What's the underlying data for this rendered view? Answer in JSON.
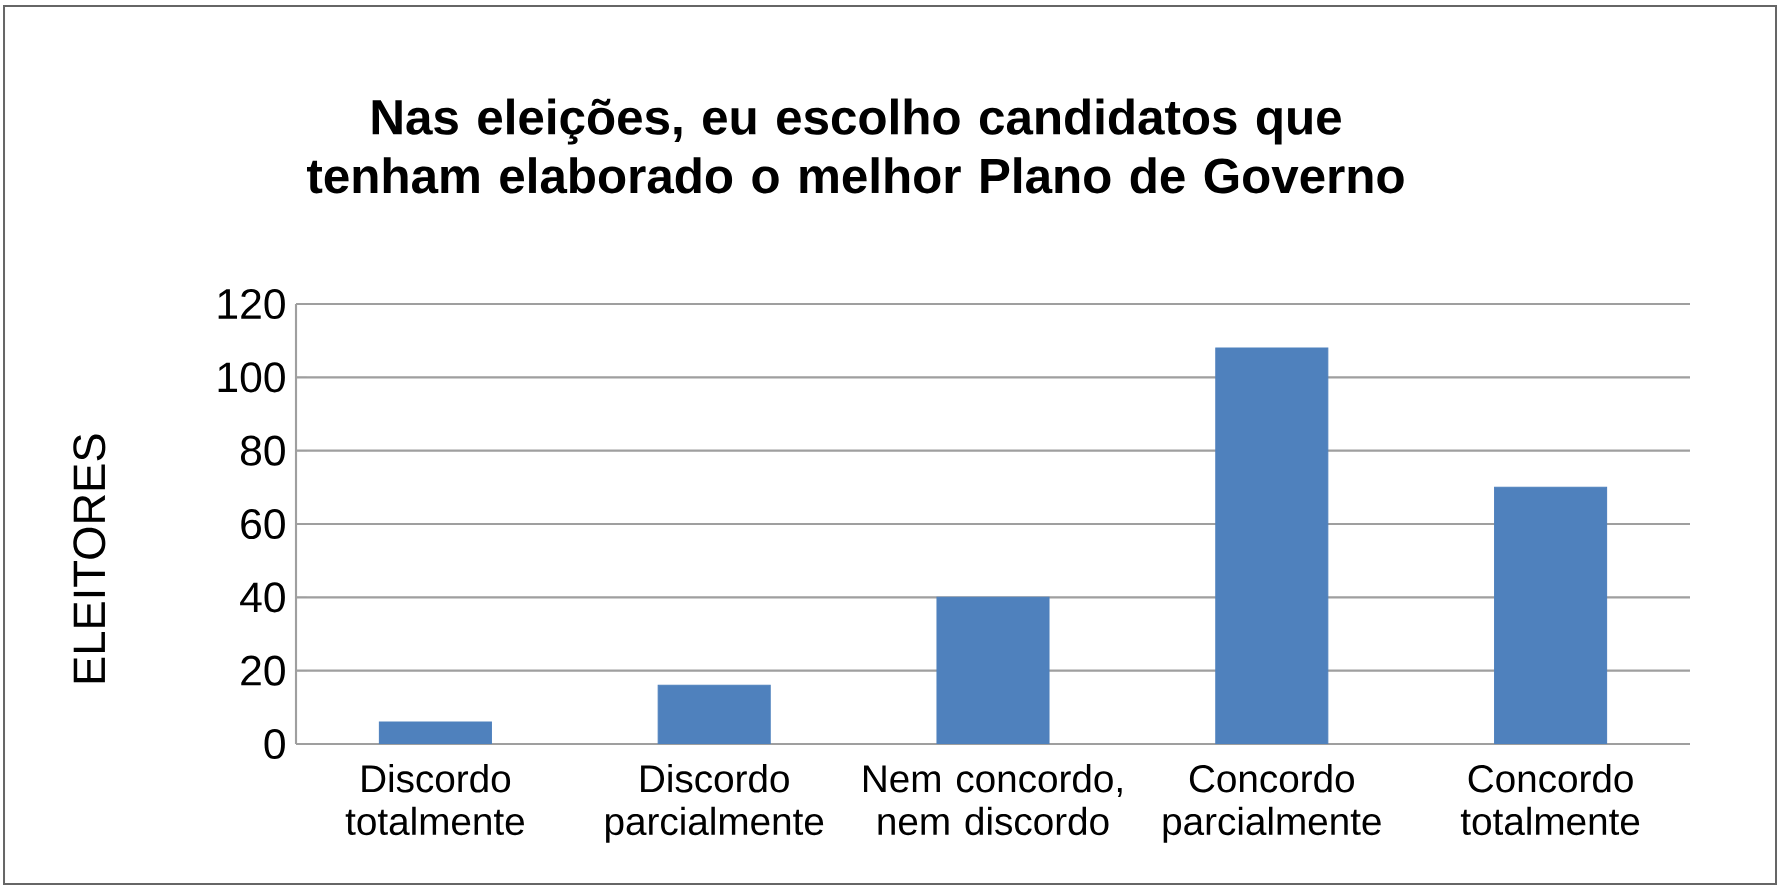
{
  "chart_data": {
    "type": "bar",
    "title": "Nas eleições, eu escolho candidatos que tenham elaborado o melhor Plano de Governo",
    "ylabel": "ELEITORES",
    "categories": [
      "Discordo totalmente",
      "Discordo parcialmente",
      "Nem concordo, nem discordo",
      "Concordo parcialmente",
      "Concordo totalmente"
    ],
    "values": [
      6,
      16,
      40,
      108,
      70
    ],
    "color": "#4f81bd",
    "ylim": [
      0,
      120
    ],
    "yticks": [
      0,
      20,
      40,
      60,
      80,
      100,
      120
    ],
    "grid": "y"
  }
}
